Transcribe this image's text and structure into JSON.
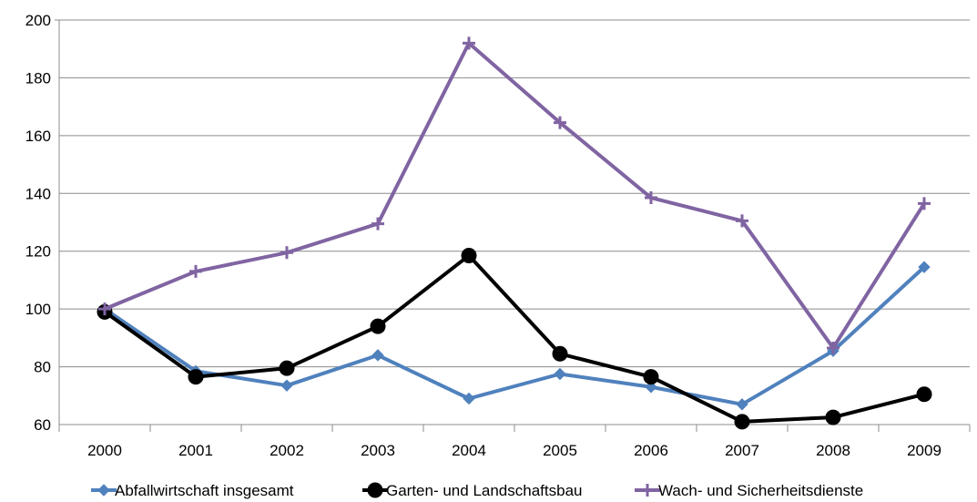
{
  "chart_data": {
    "type": "line",
    "categories": [
      "2000",
      "2001",
      "2002",
      "2003",
      "2004",
      "2005",
      "2006",
      "2007",
      "2008",
      "2009"
    ],
    "ylim": [
      60,
      200
    ],
    "yticks": [
      "60",
      "80",
      "100",
      "120",
      "140",
      "160",
      "180",
      "200"
    ],
    "grid": "horizontal",
    "legend": "bottom",
    "series": [
      {
        "name": "Abfallwirtschaft insgesamt",
        "color": "#4F81BD",
        "marker": "diamond",
        "values": [
          100,
          78.5,
          73.5,
          84,
          69,
          77.5,
          73,
          67,
          85.5,
          114.5
        ]
      },
      {
        "name": "Garten- und Landschaftsbau",
        "color": "#000000",
        "marker": "circle",
        "values": [
          99,
          76.5,
          79.5,
          94,
          118.5,
          84.5,
          76.5,
          61,
          62.5,
          70.5
        ]
      },
      {
        "name": "Wach- und Sicherheitsdienste",
        "color": "#8064A2",
        "marker": "plus",
        "values": [
          100,
          113,
          119.5,
          129.5,
          192,
          164.5,
          138.5,
          130.5,
          86.5,
          136.5
        ]
      }
    ]
  }
}
